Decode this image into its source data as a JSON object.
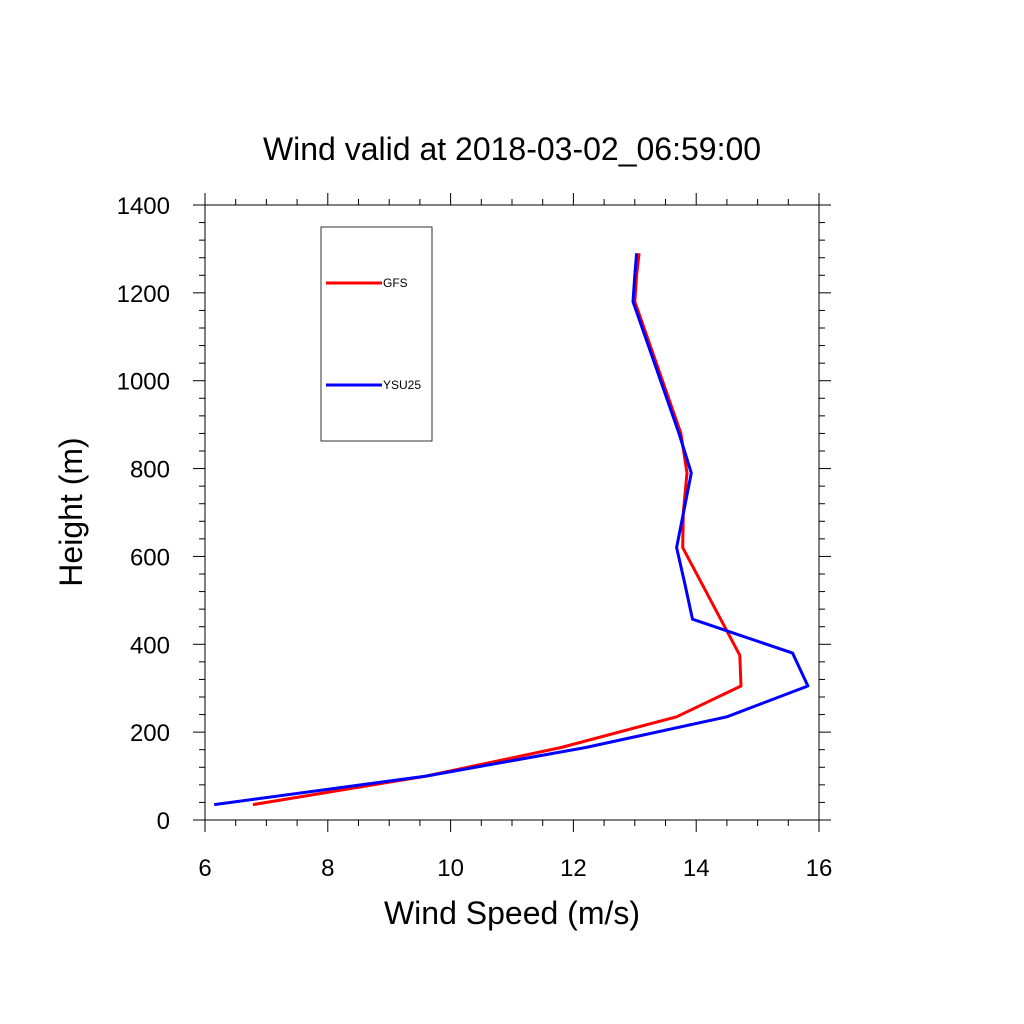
{
  "chart_data": {
    "type": "line",
    "title": "Wind valid at 2018-03-02_06:59:00",
    "xlabel": "Wind Speed (m/s)",
    "ylabel": "Height (m)",
    "xlim": [
      6,
      16
    ],
    "ylim": [
      0,
      1400
    ],
    "xticks": [
      6,
      8,
      10,
      12,
      14,
      16
    ],
    "yticks": [
      0,
      200,
      400,
      600,
      800,
      1000,
      1200,
      1400
    ],
    "grid": false,
    "legend_position": "top-left",
    "series": [
      {
        "name": "GFS",
        "color": "#ff0000",
        "x": [
          6.78,
          9.6,
          11.8,
          13.68,
          14.73,
          14.71,
          13.78,
          13.79,
          13.85,
          13.75,
          13.0,
          13.03,
          13.07
        ],
        "y": [
          35,
          100,
          165,
          235,
          305,
          375,
          620,
          700,
          790,
          880,
          1180,
          1240,
          1290
        ]
      },
      {
        "name": "YSU25",
        "color": "#0000ff",
        "x": [
          6.15,
          9.6,
          12.2,
          14.5,
          15.82,
          15.57,
          13.94,
          13.82,
          13.68,
          13.92,
          13.72,
          12.97,
          13.0,
          13.03
        ],
        "y": [
          35,
          100,
          165,
          235,
          305,
          380,
          457,
          535,
          620,
          790,
          880,
          1180,
          1240,
          1290
        ]
      }
    ]
  }
}
